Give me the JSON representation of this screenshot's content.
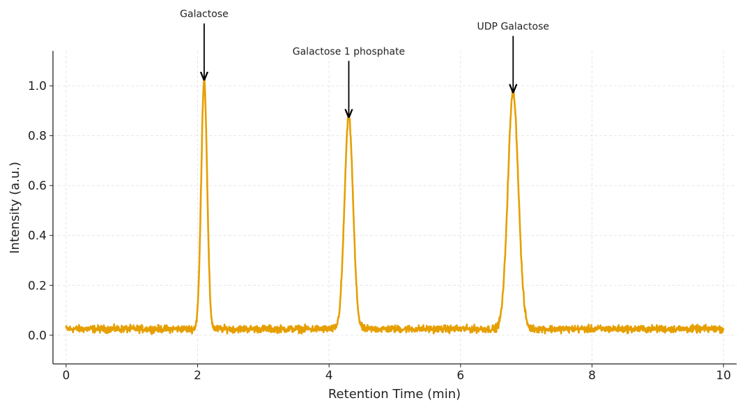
{
  "chart_data": {
    "type": "line",
    "title": "",
    "xlabel": "Retention Time (min)",
    "ylabel": "Intensity (a.u.)",
    "xlim": [
      -0.2,
      10.2
    ],
    "ylim": [
      -0.115,
      1.14
    ],
    "xticks": [
      0,
      2,
      4,
      6,
      8,
      10
    ],
    "xtick_labels": [
      "0",
      "2",
      "4",
      "6",
      "8",
      "10"
    ],
    "yticks": [
      0.0,
      0.2,
      0.4,
      0.6,
      0.8,
      1.0
    ],
    "ytick_labels": [
      "0.0",
      "0.2",
      "0.4",
      "0.6",
      "0.8",
      "1.0"
    ],
    "grid": true,
    "line_color": "#E69F00",
    "x_range": [
      0,
      10
    ],
    "baseline": 0.025,
    "noise_amplitude": 0.012,
    "peaks": [
      {
        "name": "Galactose",
        "retention_time": 2.1,
        "height": 1.0,
        "width_sigma": 0.045
      },
      {
        "name": "Galactose 1 phosphate",
        "retention_time": 4.3,
        "height": 0.85,
        "width_sigma": 0.065
      },
      {
        "name": "UDP Galactose",
        "retention_time": 6.8,
        "height": 0.95,
        "width_sigma": 0.08
      }
    ],
    "annotations": [
      {
        "text": "Galactose",
        "x": 2.1,
        "y": 1.025,
        "text_y": 1.25
      },
      {
        "text": "Galactose 1 phosphate",
        "x": 4.3,
        "y": 0.875,
        "text_y": 1.1
      },
      {
        "text": "UDP Galactose",
        "x": 6.8,
        "y": 0.975,
        "text_y": 1.2
      }
    ]
  }
}
